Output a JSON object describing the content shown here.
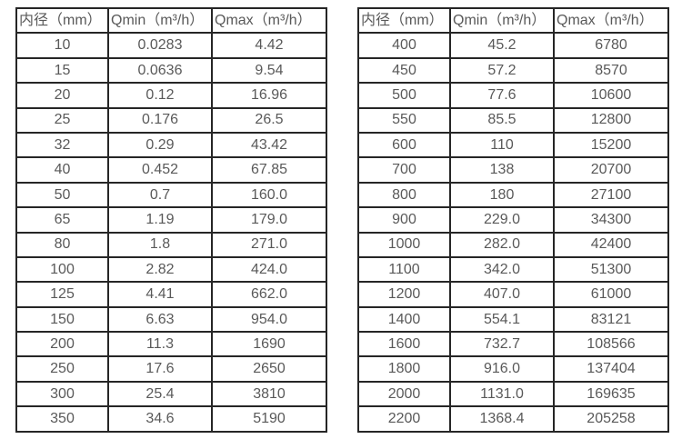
{
  "page": {
    "background_color": "#ffffff",
    "text_color": "#595959",
    "border_color": "#262626"
  },
  "tables": [
    {
      "name": "flow-table-small-diameters",
      "headers": [
        "内径（mm）",
        "Qmin（m³/h）",
        "Qmax（m³/h）"
      ],
      "rows": [
        [
          "10",
          "0.0283",
          "4.42"
        ],
        [
          "15",
          "0.0636",
          "9.54"
        ],
        [
          "20",
          "0.12",
          "16.96"
        ],
        [
          "25",
          "0.176",
          "26.5"
        ],
        [
          "32",
          "0.29",
          "43.42"
        ],
        [
          "40",
          "0.452",
          "67.85"
        ],
        [
          "50",
          "0.7",
          "160.0"
        ],
        [
          "65",
          "1.19",
          "179.0"
        ],
        [
          "80",
          "1.8",
          "271.0"
        ],
        [
          "100",
          "2.82",
          "424.0"
        ],
        [
          "125",
          "4.41",
          "662.0"
        ],
        [
          "150",
          "6.63",
          "954.0"
        ],
        [
          "200",
          "11.3",
          "1690"
        ],
        [
          "250",
          "17.6",
          "2650"
        ],
        [
          "300",
          "25.4",
          "3810"
        ],
        [
          "350",
          "34.6",
          "5190"
        ]
      ]
    },
    {
      "name": "flow-table-large-diameters",
      "headers": [
        "内径（mm）",
        "Qmin（m³/h）",
        "Qmax（m³/h）"
      ],
      "rows": [
        [
          "400",
          "45.2",
          "6780"
        ],
        [
          "450",
          "57.2",
          "8570"
        ],
        [
          "500",
          "77.6",
          "10600"
        ],
        [
          "550",
          "85.5",
          "12800"
        ],
        [
          "600",
          "110",
          "15200"
        ],
        [
          "700",
          "138",
          "20700"
        ],
        [
          "800",
          "180",
          "27100"
        ],
        [
          "900",
          "229.0",
          "34300"
        ],
        [
          "1000",
          "282.0",
          "42400"
        ],
        [
          "1100",
          "342.0",
          "51300"
        ],
        [
          "1200",
          "407.0",
          "61000"
        ],
        [
          "1400",
          "554.1",
          "83121"
        ],
        [
          "1600",
          "732.7",
          "108566"
        ],
        [
          "1800",
          "916.0",
          "137404"
        ],
        [
          "2000",
          "1131.0",
          "169635"
        ],
        [
          "2200",
          "1368.4",
          "205258"
        ]
      ]
    }
  ]
}
